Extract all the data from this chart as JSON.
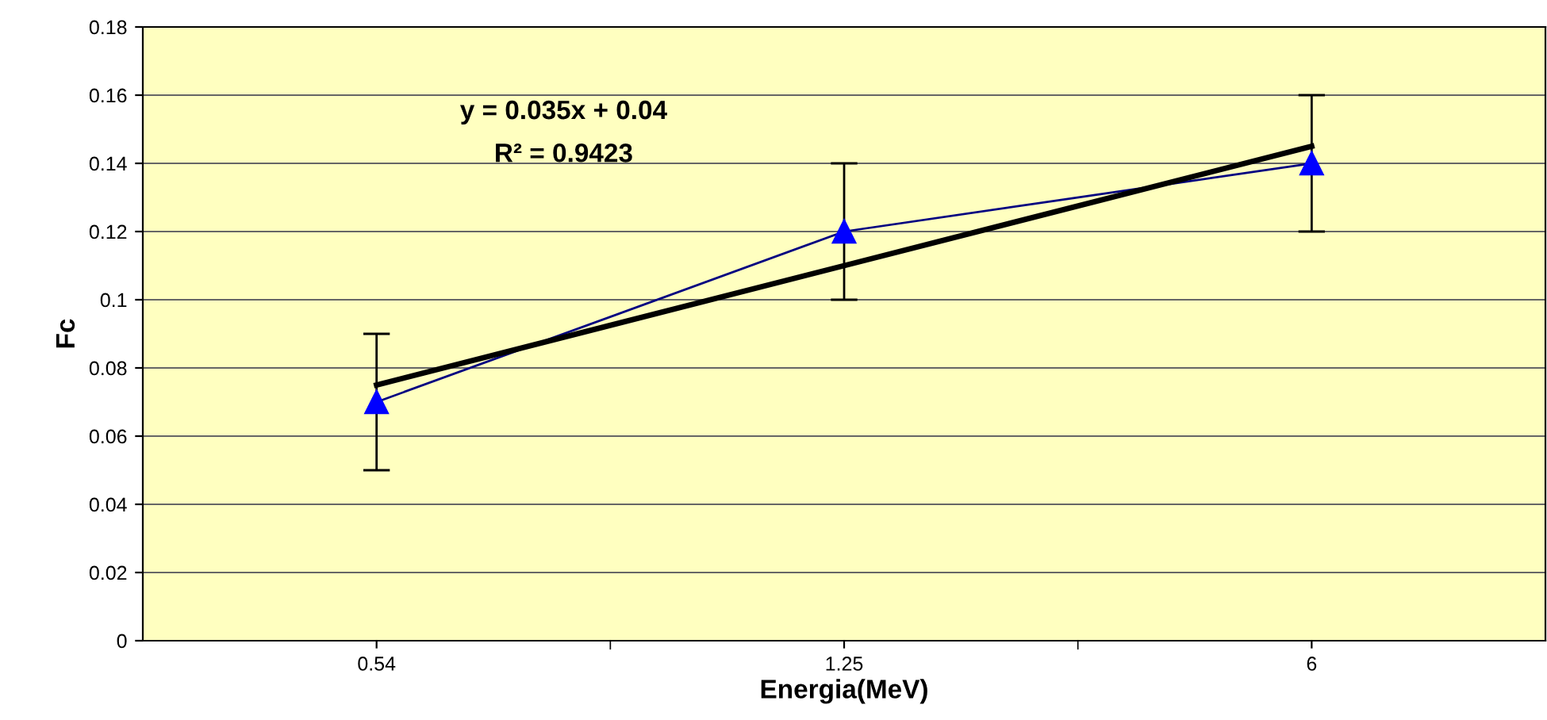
{
  "chart_data": {
    "type": "line",
    "xlabel": "Energia(MeV)",
    "ylabel": "Fc",
    "categories": [
      "0.54",
      "1.25",
      "6"
    ],
    "series": [
      {
        "color": "#0000ff",
        "values": [
          0.07,
          0.12,
          0.14
        ],
        "errors": [
          0.02,
          0.02,
          0.02
        ],
        "marker": "triangle"
      },
      {
        "color": "#000000",
        "values": [
          0.075,
          0.11,
          0.145
        ],
        "marker": "none"
      }
    ],
    "annotations": [
      "y = 0.035x + 0.04",
      "R² = 0.9423"
    ],
    "ylim": [
      0,
      0.18
    ],
    "yticks": [
      0,
      0.02,
      0.04,
      0.06,
      0.08,
      0.1,
      0.12,
      0.14,
      0.16,
      0.18
    ],
    "grid": "y",
    "legend": false
  }
}
